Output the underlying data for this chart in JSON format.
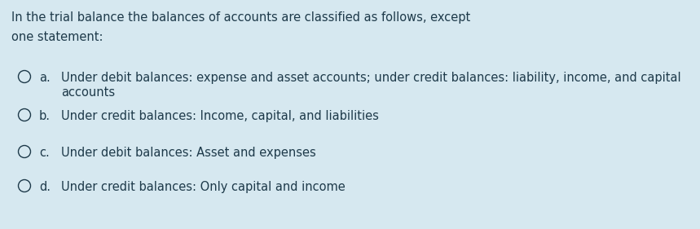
{
  "background_color": "#d6e8f0",
  "title_line1": "In the trial balance the balances of accounts are classified as follows, except",
  "title_line2": "one statement:",
  "options": [
    {
      "letter": "a.",
      "line1": "Under debit balances: expense and asset accounts; under credit balances: liability, income, and capital",
      "line2": "accounts"
    },
    {
      "letter": "b.",
      "line1": "Under credit balances: Income, capital, and liabilities",
      "line2": null
    },
    {
      "letter": "c.",
      "line1": "Under debit balances: Asset and expenses",
      "line2": null
    },
    {
      "letter": "d.",
      "line1": "Under credit balances: Only capital and income",
      "line2": null
    }
  ],
  "text_color": "#1e3a4a",
  "font_size": 10.5,
  "circle_ec": "#1e3a4a",
  "circle_lw": 1.0
}
